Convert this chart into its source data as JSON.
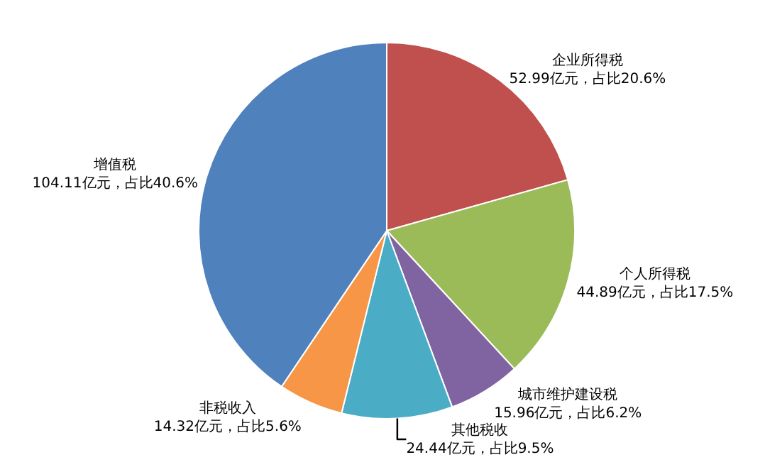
{
  "chart_data": {
    "type": "pie",
    "categories": [
      "企业所得税",
      "个人所得税",
      "城市维护建设税",
      "其他税收",
      "非税收入",
      "增值税"
    ],
    "values": [
      52.99,
      44.89,
      15.96,
      24.44,
      14.32,
      104.11
    ],
    "colors": [
      "#c0504d",
      "#9bbb59",
      "#8064a2",
      "#4bacc6",
      "#f79646",
      "#4f81bd"
    ],
    "value_labels": [
      "52.99亿元，占比20.6%",
      "44.89亿元，占比17.5%",
      "15.96亿元，占比6.2%",
      "24.44亿元，占比9.5%",
      "14.32亿元，占比5.6%",
      "104.11亿元，占比40.6%"
    ],
    "legend": false
  }
}
